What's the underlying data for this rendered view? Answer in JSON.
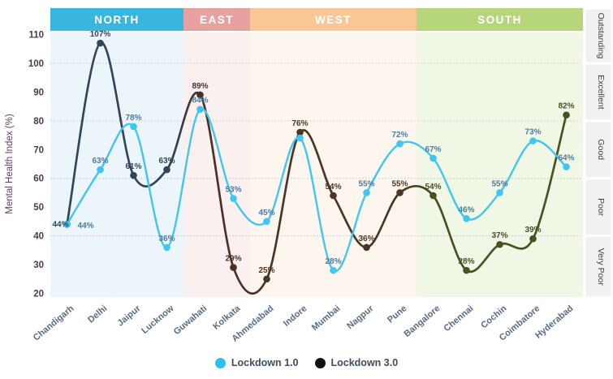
{
  "chart_data": {
    "type": "line",
    "ylabel": "Mental Health Index (%)",
    "categories": [
      "Chandigarh",
      "Delhi",
      "Jaipur",
      "Lucknow",
      "Guwahati",
      "Kolkata",
      "Ahmedabad",
      "Indore",
      "Mumbai",
      "Nagpur",
      "Pune",
      "Bangalore",
      "Chennai",
      "Cochin",
      "Coimbatore",
      "Hyderabad"
    ],
    "regions": [
      {
        "name": "NORTH",
        "city_count": 4,
        "header_color": "#38b6dd",
        "bg_color": "#ecf5fa",
        "dark_color": "#32465a"
      },
      {
        "name": "EAST",
        "city_count": 2,
        "header_color": "#e8a1a1",
        "bg_color": "#faf0ef",
        "dark_color": "#4c2e27"
      },
      {
        "name": "WEST",
        "city_count": 5,
        "header_color": "#f9c795",
        "bg_color": "#fcf6ee",
        "dark_color": "#4b3524"
      },
      {
        "name": "SOUTH",
        "city_count": 5,
        "header_color": "#b7d67c",
        "bg_color": "#f0f7e5",
        "dark_color": "#475220"
      }
    ],
    "series": [
      {
        "name": "Lockdown 1.0",
        "color": "#41c6f0",
        "label_color": "#4e7aa0",
        "values": [
          44,
          63,
          78,
          36,
          84,
          53,
          45,
          74,
          28,
          55,
          72,
          67,
          46,
          55,
          73,
          64
        ],
        "labels": [
          "44%",
          "63%",
          "78%",
          "36%",
          "84%",
          "53%",
          "45%",
          null,
          "28%",
          "55%",
          "72%",
          "67%",
          "46%",
          "55%",
          "73%",
          "64%"
        ]
      },
      {
        "name": "Lockdown 3.0",
        "color": "region",
        "values": [
          44,
          107,
          61,
          63,
          89,
          29,
          25,
          76,
          54,
          36,
          55,
          54,
          28,
          37,
          39,
          82
        ],
        "labels": [
          "44%",
          "107%",
          "61%",
          "63%",
          "89%",
          "29%",
          "25%",
          "76%",
          "54%",
          "36%",
          "55%",
          "54%",
          "28%",
          "37%",
          "39%",
          "82%"
        ]
      }
    ],
    "y_ticks": [
      110,
      100,
      90,
      80,
      70,
      60,
      50,
      40,
      30,
      20
    ],
    "ylim": [
      20,
      110
    ],
    "gridlines": [
      40,
      60,
      80,
      100
    ],
    "grid_on": true,
    "rating_bands": [
      {
        "label": "Outstanding",
        "range": [
          100,
          112
        ]
      },
      {
        "label": "Excellent",
        "range": [
          80,
          100
        ]
      },
      {
        "label": "Good",
        "range": [
          60,
          80
        ]
      },
      {
        "label": "Poor",
        "range": [
          40,
          60
        ]
      },
      {
        "label": "Very Poor",
        "range": [
          20,
          40
        ]
      }
    ],
    "legend": [
      {
        "label": "Lockdown 1.0",
        "color": "#2cc0f0"
      },
      {
        "label": "Lockdown 3.0",
        "color": "#111111"
      }
    ],
    "legend_position": "bottom",
    "axis_colors": {
      "y_tick": "#4a3b52",
      "y_title": "#603c62",
      "x_label": "#566b84",
      "band_label": "#3d3d3d"
    }
  }
}
